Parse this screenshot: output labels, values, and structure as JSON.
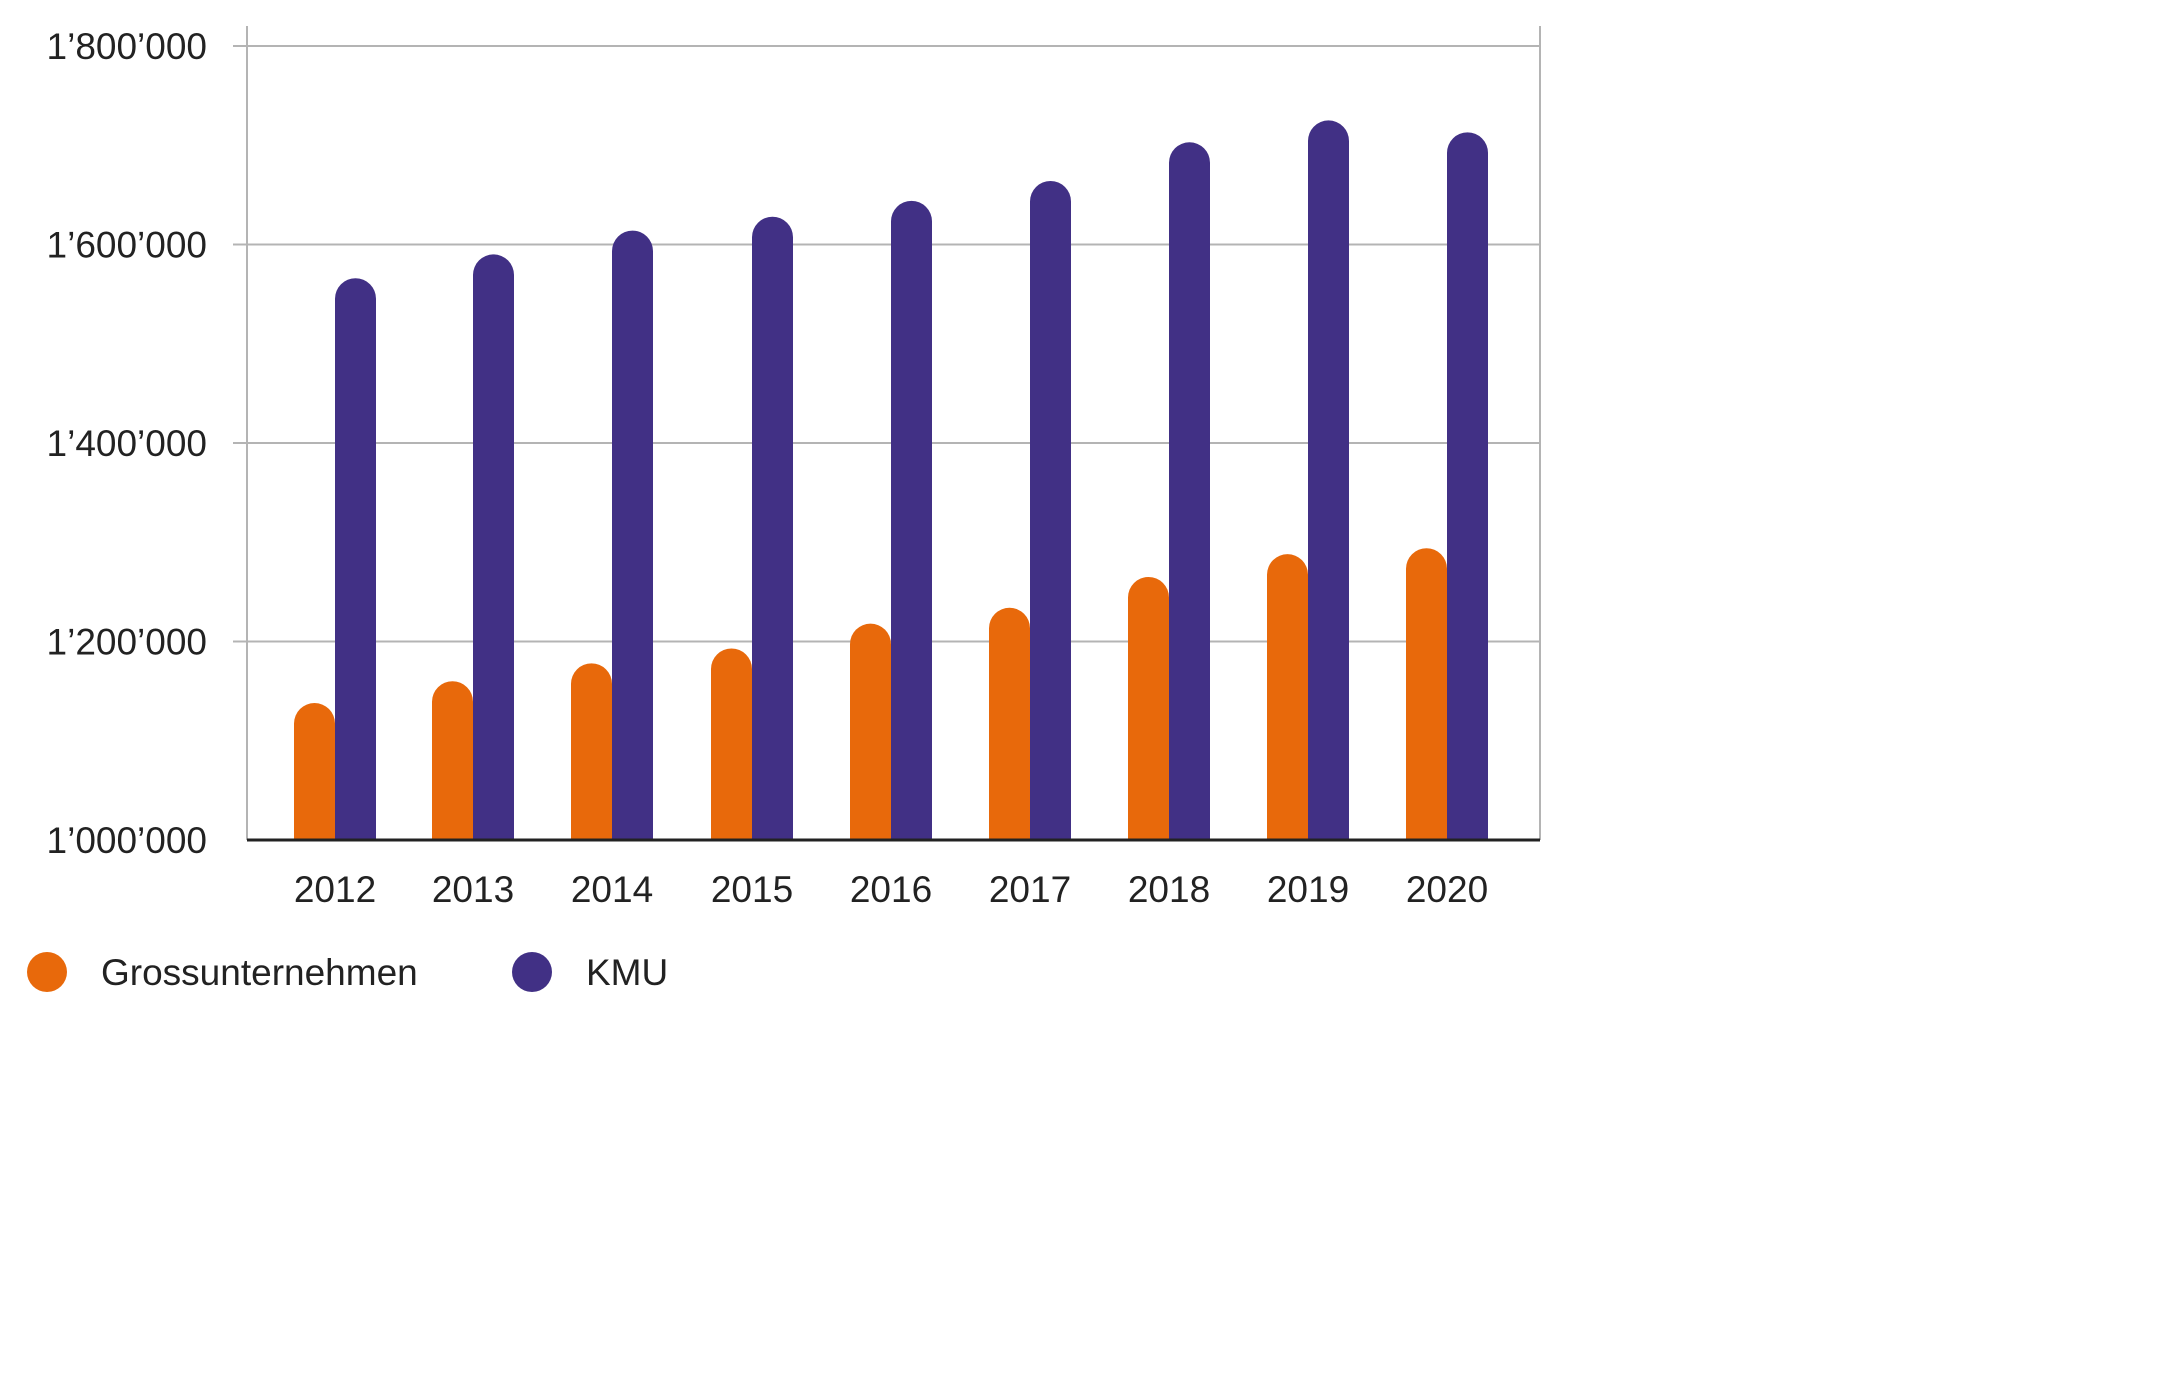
{
  "chart_data": {
    "type": "bar",
    "title": "",
    "xlabel": "",
    "ylabel": "",
    "categories": [
      "2012",
      "2013",
      "2014",
      "2015",
      "2016",
      "2017",
      "2018",
      "2019",
      "2020"
    ],
    "series": [
      {
        "name": "Grossunternehmen",
        "color": "#e8690b",
        "values": [
          1138000,
          1160000,
          1178000,
          1193000,
          1218000,
          1234000,
          1265000,
          1288000,
          1294000
        ]
      },
      {
        "name": "KMU",
        "color": "#413085",
        "values": [
          1566000,
          1590000,
          1614000,
          1628000,
          1644000,
          1664000,
          1703000,
          1725000,
          1713000
        ]
      }
    ],
    "ylim": [
      1000000,
      1800000
    ],
    "yticks": [
      1000000,
      1200000,
      1400000,
      1600000,
      1800000
    ],
    "ytick_labels": [
      "1’000’000",
      "1’200’000",
      "1’400’000",
      "1’600’000",
      "1’800’000"
    ],
    "grid": true,
    "legend_position": "bottom-left"
  }
}
